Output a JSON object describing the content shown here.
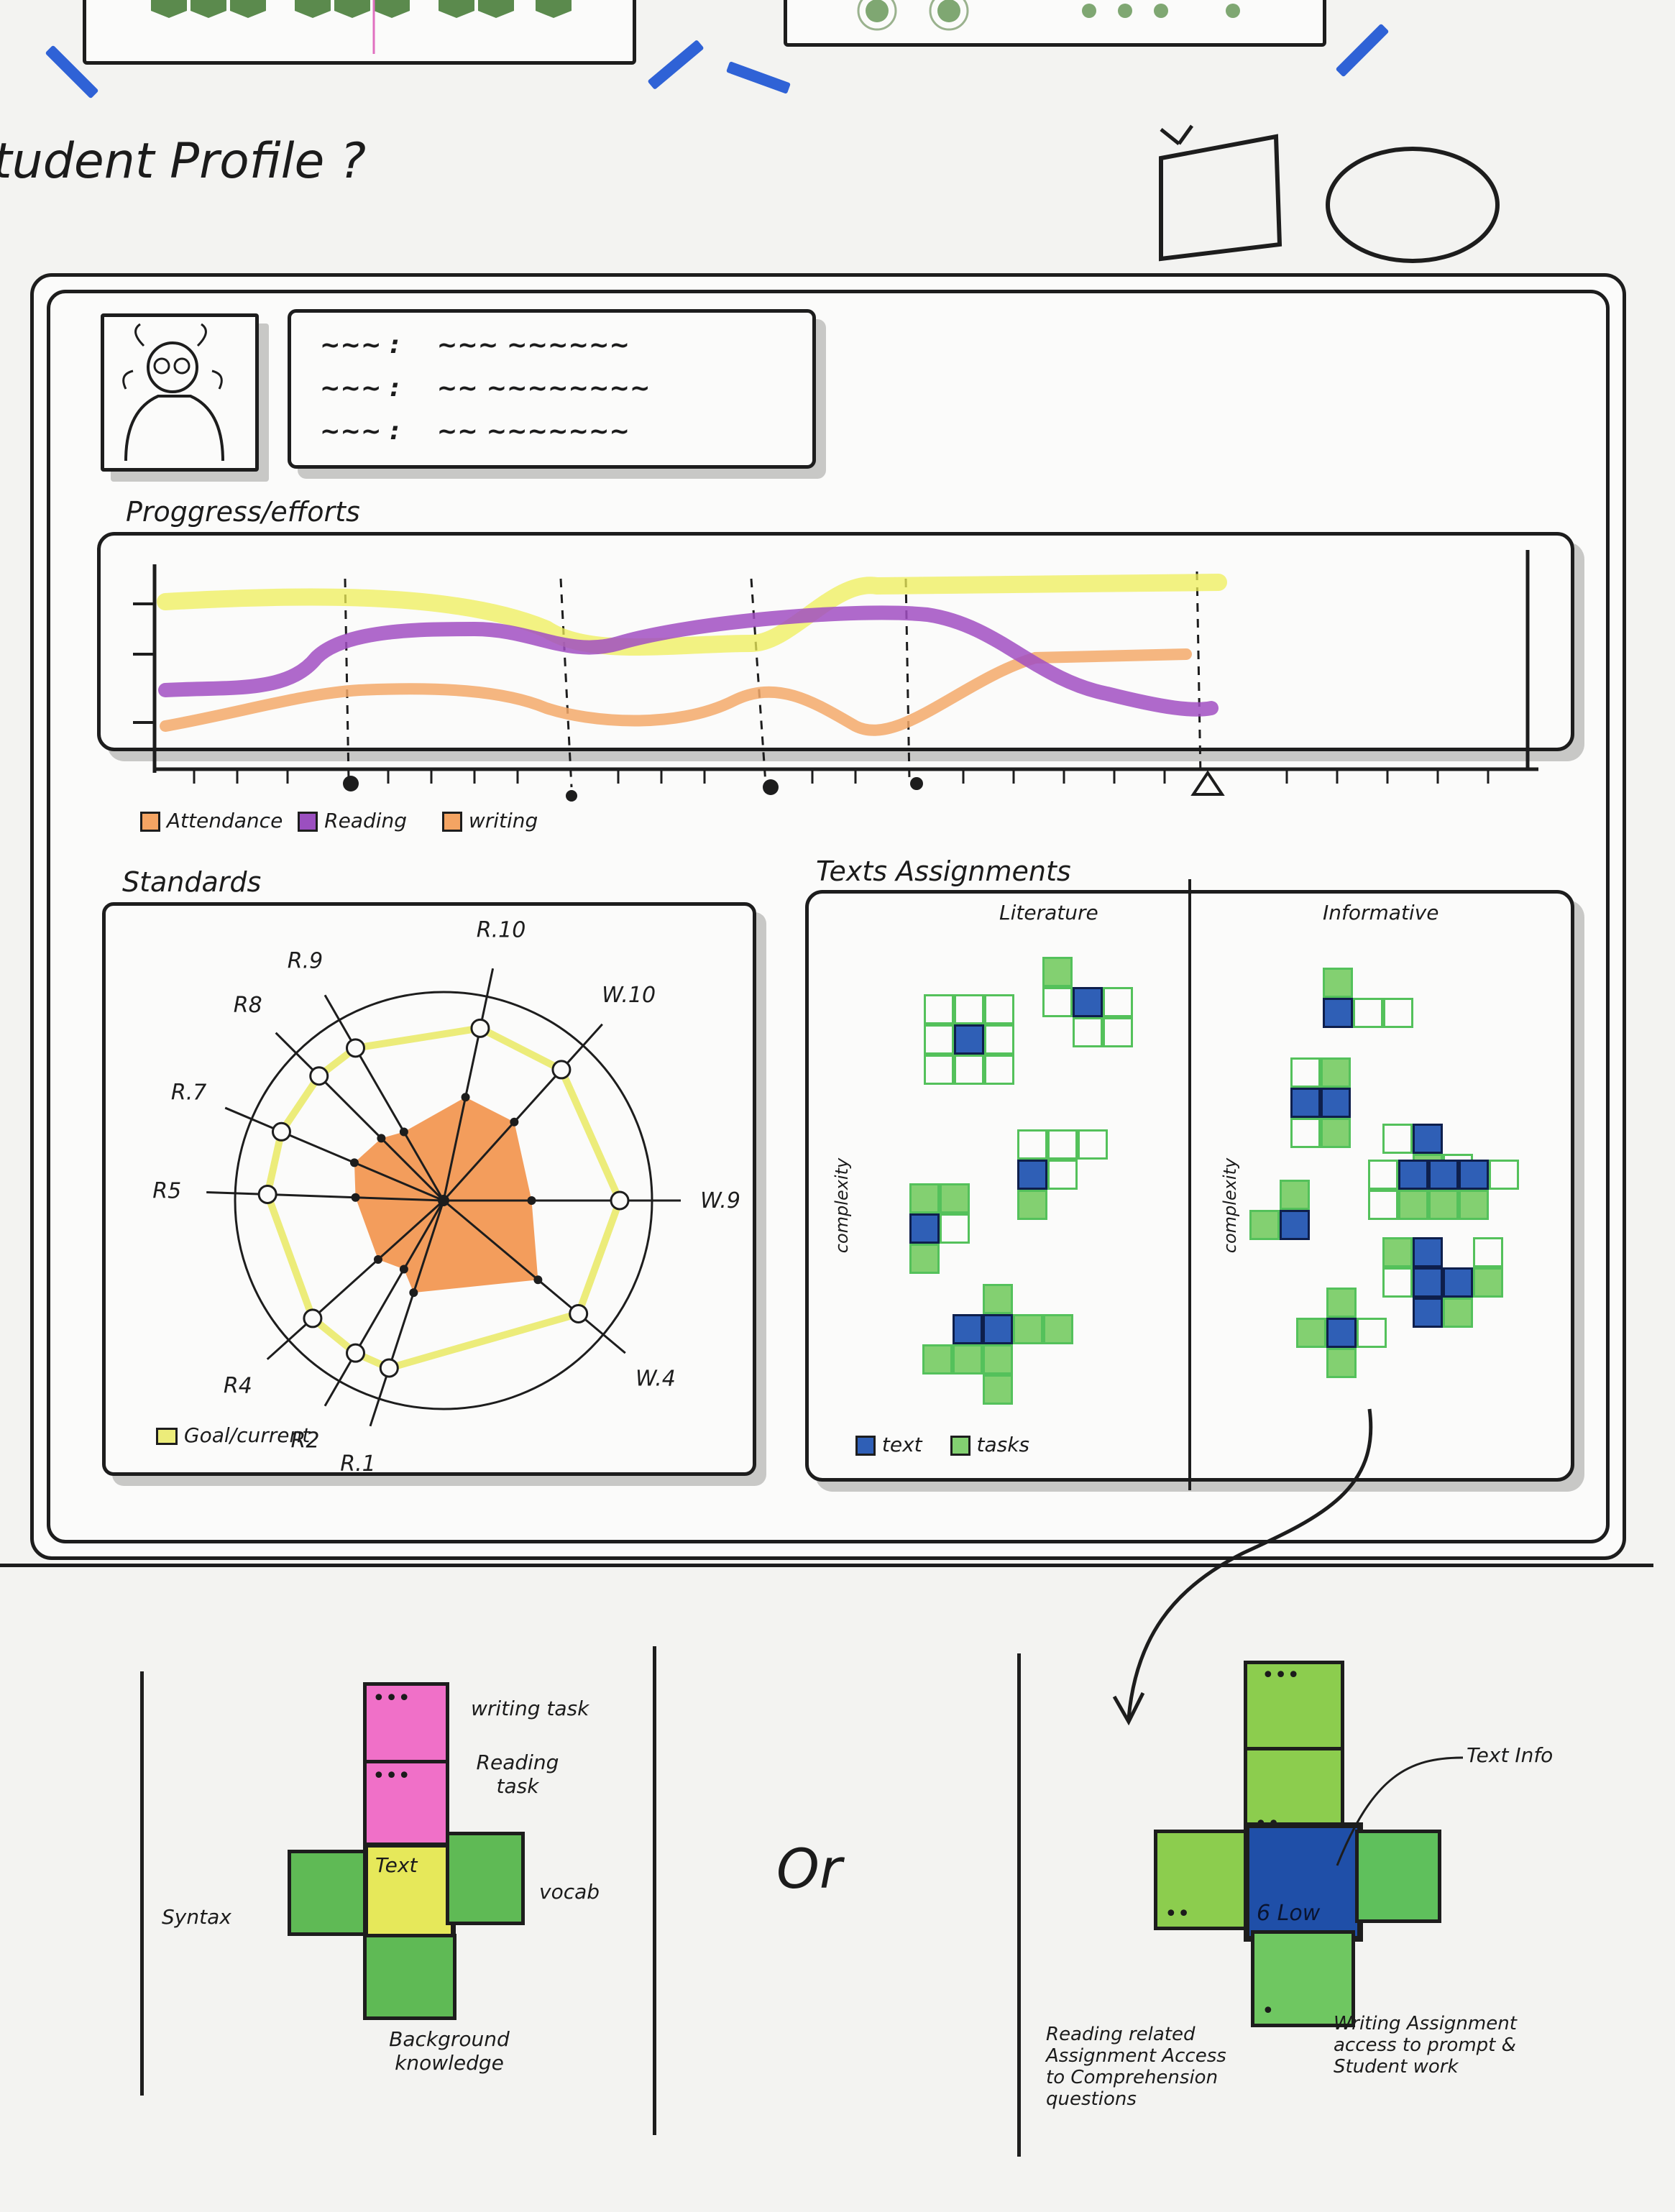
{
  "page": {
    "title": "tudent Profile ?",
    "or_label": "Or"
  },
  "profile": {
    "fields": [
      {
        "key": "~~~ :",
        "value": "~~~ ~~~~~~"
      },
      {
        "key": "~~~ :",
        "value": "~~ ~~~~~~~~"
      },
      {
        "key": "~~~ :",
        "value": "~~ ~~~~~~~"
      }
    ]
  },
  "progress": {
    "title": "Proggress/efforts",
    "legend": [
      {
        "label": "Attendance",
        "color": "#f4a463"
      },
      {
        "label": "Reading",
        "color": "#9b4fc0"
      },
      {
        "label": "writing",
        "color": "#f4a463"
      }
    ]
  },
  "standards": {
    "title": "Standards",
    "legend": "Goal/current",
    "colors": {
      "goal": "#ecec7a",
      "current": "#f2924a"
    }
  },
  "texts": {
    "title": "Texts Assignments",
    "columns": [
      "Literature",
      "Informative"
    ],
    "axis_label": "complexity",
    "legend": [
      {
        "label": "text",
        "color": "#2f5fb6"
      },
      {
        "label": "tasks",
        "color": "#83d071"
      }
    ]
  },
  "detail_left": {
    "labels": {
      "writing_task": "writing task",
      "reading_task": "Reading task",
      "text": "Text",
      "vocab": "vocab",
      "syntax": "Syntax",
      "background": "Background knowledge"
    }
  },
  "detail_right": {
    "labels": {
      "text_info": "Text Info",
      "level": "6 Low",
      "reading_assignment": "Reading related Assignment Access to Comprehension questions",
      "writing_assignment": "Writing Assignment access to prompt & Student work"
    }
  },
  "chart_data": {
    "type": "line",
    "title": "Proggress/efforts",
    "series": [
      {
        "name": "Attendance",
        "color": "#f4a463"
      },
      {
        "name": "Reading",
        "color": "#9b4fc0"
      },
      {
        "name": "writing",
        "color": "#f4a463"
      }
    ],
    "radar": {
      "axes": [
        "R.10",
        "W.10",
        "W.9",
        "W.4",
        "R.1",
        "R2",
        "R4",
        "R5",
        "R.7",
        "R8",
        "R.9"
      ],
      "goal": [
        1,
        1,
        1,
        1,
        1,
        1,
        1,
        1,
        1,
        1,
        1
      ],
      "current": [
        0.6,
        0.6,
        0.5,
        0.7,
        0.55,
        0.45,
        0.5,
        0.5,
        0.55,
        0.5,
        0.45
      ]
    }
  }
}
